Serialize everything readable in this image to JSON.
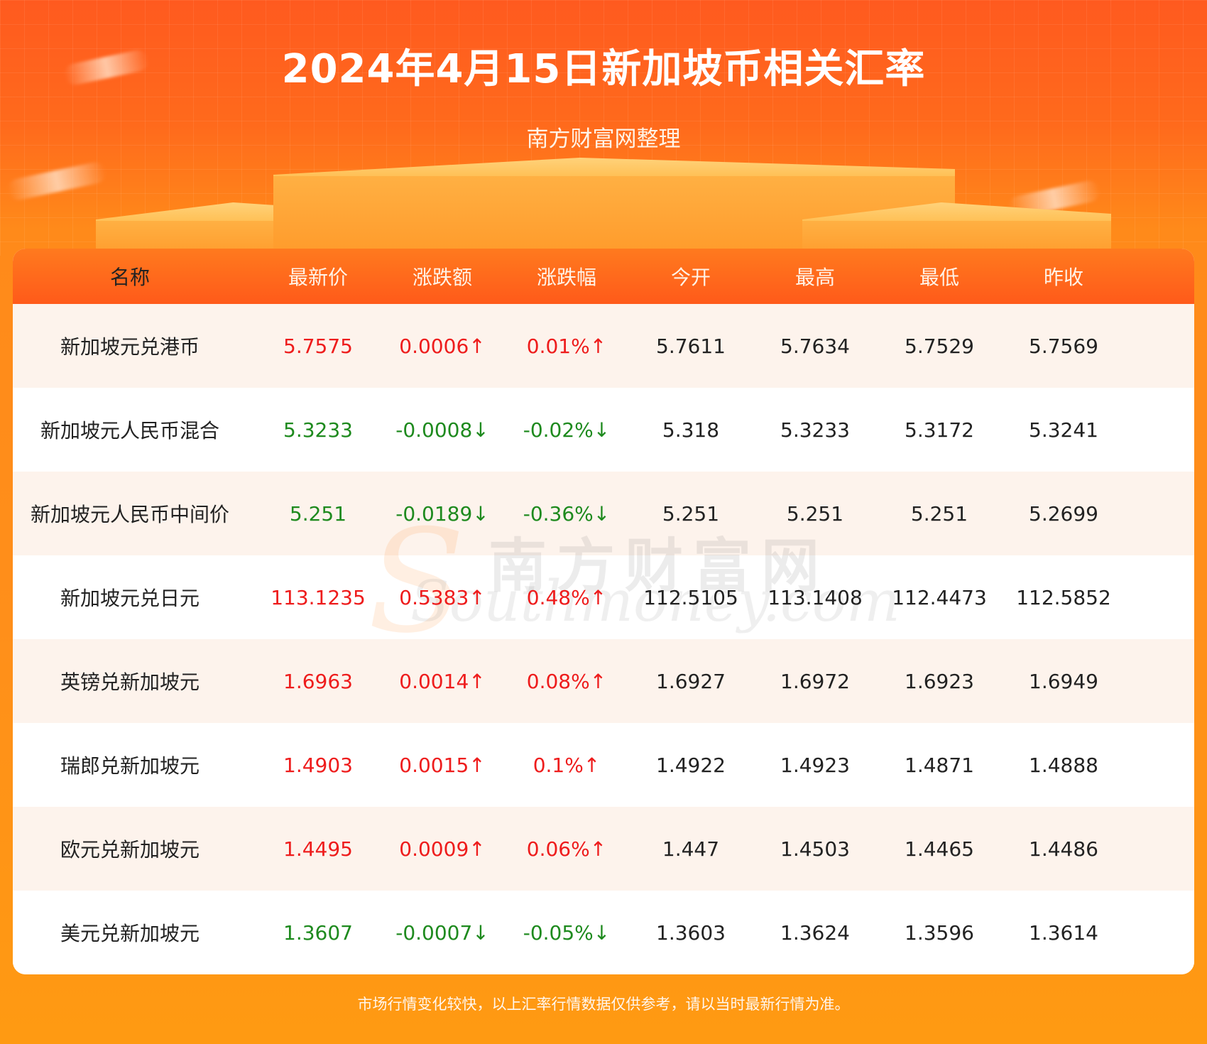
{
  "header": {
    "title": "2024年4月15日新加坡币相关汇率",
    "subtitle": "南方财富网整理"
  },
  "table": {
    "columns": [
      "名称",
      "最新价",
      "涨跌额",
      "涨跌幅",
      "今开",
      "最高",
      "最低",
      "昨收"
    ],
    "rows": [
      {
        "name": "新加坡元兑港币",
        "latest": "5.7575",
        "change": "0.0006↑",
        "pct": "0.01%↑",
        "open": "5.7611",
        "high": "5.7634",
        "low": "5.7529",
        "prev": "5.7569",
        "trend": "up"
      },
      {
        "name": "新加坡元人民币混合",
        "latest": "5.3233",
        "change": "-0.0008↓",
        "pct": "-0.02%↓",
        "open": "5.318",
        "high": "5.3233",
        "low": "5.3172",
        "prev": "5.3241",
        "trend": "down"
      },
      {
        "name": "新加坡元人民币中间价",
        "latest": "5.251",
        "change": "-0.0189↓",
        "pct": "-0.36%↓",
        "open": "5.251",
        "high": "5.251",
        "low": "5.251",
        "prev": "5.2699",
        "trend": "down"
      },
      {
        "name": "新加坡元兑日元",
        "latest": "113.1235",
        "change": "0.5383↑",
        "pct": "0.48%↑",
        "open": "112.5105",
        "high": "113.1408",
        "low": "112.4473",
        "prev": "112.5852",
        "trend": "up"
      },
      {
        "name": "英镑兑新加坡元",
        "latest": "1.6963",
        "change": "0.0014↑",
        "pct": "0.08%↑",
        "open": "1.6927",
        "high": "1.6972",
        "low": "1.6923",
        "prev": "1.6949",
        "trend": "up"
      },
      {
        "name": "瑞郎兑新加坡元",
        "latest": "1.4903",
        "change": "0.0015↑",
        "pct": "0.1%↑",
        "open": "1.4922",
        "high": "1.4923",
        "low": "1.4871",
        "prev": "1.4888",
        "trend": "up"
      },
      {
        "name": "欧元兑新加坡元",
        "latest": "1.4495",
        "change": "0.0009↑",
        "pct": "0.06%↑",
        "open": "1.447",
        "high": "1.4503",
        "low": "1.4465",
        "prev": "1.4486",
        "trend": "up"
      },
      {
        "name": "美元兑新加坡元",
        "latest": "1.3607",
        "change": "-0.0007↓",
        "pct": "-0.05%↓",
        "open": "1.3603",
        "high": "1.3624",
        "low": "1.3596",
        "prev": "1.3614",
        "trend": "down"
      }
    ]
  },
  "watermark": {
    "cn": "南方财富网",
    "en": "Southmoney.com"
  },
  "footer": {
    "note": "市场行情变化较快，以上汇率行情数据仅供参考，请以当时最新行情为准。"
  },
  "colors": {
    "up": "#ee1c1c",
    "down": "#1e8a1e",
    "header_bg": "#ff6a1c"
  }
}
